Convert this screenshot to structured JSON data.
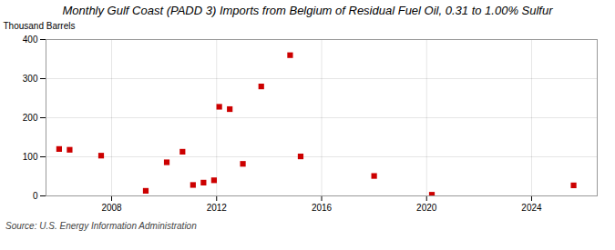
{
  "chart_data": {
    "type": "scatter",
    "title": "Monthly Gulf Coast (PADD 3) Imports from Belgium of Residual Fuel Oil, 0.31 to 1.00% Sulfur",
    "ylabel": "Thousand Barrels",
    "source": "Source: U.S. Energy Information Administration",
    "x": [
      2006.0,
      2006.4,
      2007.6,
      2009.3,
      2010.1,
      2010.7,
      2011.1,
      2011.5,
      2011.9,
      2012.1,
      2012.5,
      2013.0,
      2013.7,
      2014.8,
      2015.2,
      2018.0,
      2020.2,
      2025.6
    ],
    "values": [
      120,
      118,
      103,
      13,
      86,
      113,
      28,
      34,
      40,
      228,
      222,
      82,
      280,
      360,
      101,
      51,
      3,
      27
    ],
    "color": "#cc0000",
    "marker": "square",
    "xlim": [
      2005.5,
      2026.5
    ],
    "xticks": [
      2008,
      2012,
      2016,
      2020,
      2024
    ],
    "ylim": [
      0,
      400
    ],
    "yticks": [
      0,
      100,
      200,
      300,
      400
    ],
    "grid": true
  }
}
